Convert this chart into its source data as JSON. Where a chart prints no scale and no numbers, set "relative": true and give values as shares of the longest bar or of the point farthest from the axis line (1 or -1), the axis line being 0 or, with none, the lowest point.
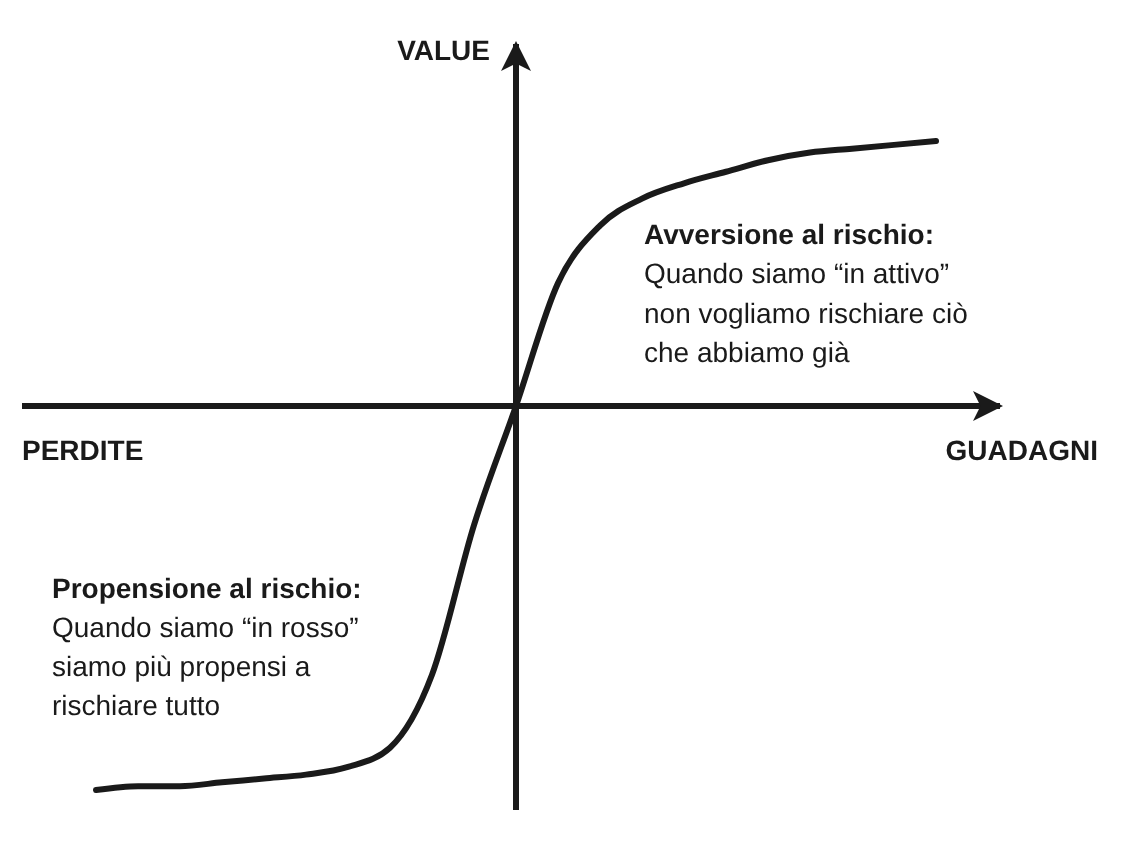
{
  "chart_data": {
    "type": "line",
    "relative": true,
    "categories": [
      null,
      null,
      null,
      null,
      null,
      null,
      null,
      null,
      null,
      null,
      null,
      null,
      null,
      null,
      null,
      null,
      null,
      null,
      null,
      null,
      null
    ],
    "series": [
      {
        "color": "#1a1a1a",
        "values": [
          -1,
          -0.99,
          -0.99,
          -0.98,
          -0.97,
          -0.96,
          -0.94,
          -0.89,
          -0.7,
          -0.31,
          0,
          0.32,
          0.47,
          0.54,
          0.58,
          0.61,
          0.64,
          0.66,
          0.67,
          0.68,
          0.69
        ]
      }
    ],
    "xlabel": "GUADAGNI",
    "ylabel": "VALUE",
    "annotations": [
      "PERDITE",
      "Avversione al rischio:\nQuando siamo “in attivo”\nnon vogliamo rischiare ciò\nche abbiamo già",
      "Propensione al rischio:\nQuando siamo “in rosso”\nsiamo più propensi a\nrischiare tutto"
    ]
  }
}
